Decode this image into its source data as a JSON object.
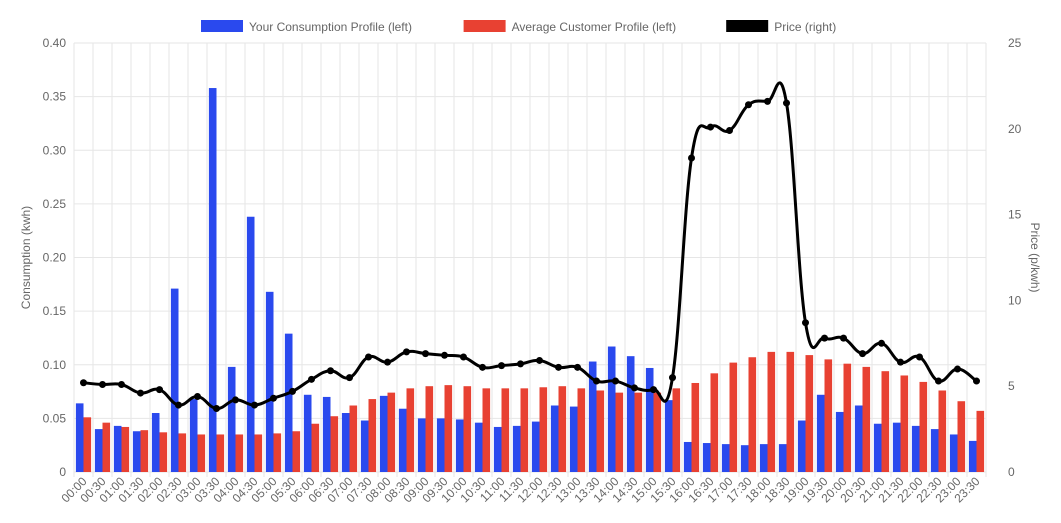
{
  "chart_data": {
    "type": "bar",
    "categories": [
      "00:00",
      "00:30",
      "01:00",
      "01:30",
      "02:00",
      "02:30",
      "03:00",
      "03:30",
      "04:00",
      "04:30",
      "05:00",
      "05:30",
      "06:00",
      "06:30",
      "07:00",
      "07:30",
      "08:00",
      "08:30",
      "09:00",
      "09:30",
      "10:00",
      "10:30",
      "11:00",
      "11:30",
      "12:00",
      "12:30",
      "13:00",
      "13:30",
      "14:00",
      "14:30",
      "15:00",
      "15:30",
      "16:00",
      "16:30",
      "17:00",
      "17:30",
      "18:00",
      "18:30",
      "19:00",
      "19:30",
      "20:00",
      "20:30",
      "21:00",
      "21:30",
      "22:00",
      "22:30",
      "23:00",
      "23:30"
    ],
    "series": [
      {
        "name": "Your Consumption Profile (left)",
        "type": "bar",
        "axis": "left",
        "color": "#2a49ee",
        "values": [
          0.064,
          0.04,
          0.043,
          0.038,
          0.055,
          0.171,
          0.068,
          0.358,
          0.098,
          0.238,
          0.168,
          0.129,
          0.072,
          0.07,
          0.055,
          0.048,
          0.071,
          0.059,
          0.05,
          0.05,
          0.049,
          0.046,
          0.042,
          0.043,
          0.047,
          0.062,
          0.061,
          0.103,
          0.117,
          0.108,
          0.097,
          0.067,
          0.028,
          0.027,
          0.026,
          0.025,
          0.026,
          0.026,
          0.048,
          0.072,
          0.056,
          0.062,
          0.045,
          0.046,
          0.043,
          0.04,
          0.035,
          0.029
        ]
      },
      {
        "name": "Average Customer Profile (left)",
        "type": "bar",
        "axis": "left",
        "color": "#e84132",
        "values": [
          0.051,
          0.046,
          0.042,
          0.039,
          0.037,
          0.036,
          0.035,
          0.035,
          0.035,
          0.035,
          0.036,
          0.038,
          0.045,
          0.052,
          0.062,
          0.068,
          0.074,
          0.078,
          0.08,
          0.081,
          0.08,
          0.078,
          0.078,
          0.078,
          0.079,
          0.08,
          0.078,
          0.076,
          0.074,
          0.074,
          0.074,
          0.078,
          0.083,
          0.092,
          0.102,
          0.107,
          0.112,
          0.112,
          0.109,
          0.105,
          0.101,
          0.098,
          0.094,
          0.09,
          0.084,
          0.076,
          0.066,
          0.057
        ]
      },
      {
        "name": "Price (right)",
        "type": "line",
        "axis": "right",
        "color": "#000000",
        "values": [
          5.2,
          5.1,
          5.1,
          4.6,
          4.8,
          3.9,
          4.4,
          3.7,
          4.2,
          3.9,
          4.3,
          4.7,
          5.4,
          5.9,
          5.5,
          6.7,
          6.4,
          7.0,
          6.9,
          6.8,
          6.7,
          6.1,
          6.2,
          6.3,
          6.5,
          6.1,
          6.1,
          5.3,
          5.3,
          4.9,
          4.8,
          5.5,
          18.3,
          20.1,
          19.9,
          21.4,
          21.6,
          21.5,
          8.7,
          7.8,
          7.8,
          6.9,
          7.5,
          6.4,
          6.7,
          5.3,
          6.0,
          5.3
        ]
      }
    ],
    "ylabel": "Consumption (kwh)",
    "ylim": [
      0,
      0.4
    ],
    "yticks": [
      "0",
      "0.05",
      "0.10",
      "0.15",
      "0.20",
      "0.25",
      "0.30",
      "0.35",
      "0.40"
    ],
    "y2label": "Price (p/kwh)",
    "y2lim": [
      0,
      25
    ],
    "y2ticks": [
      "0",
      "5",
      "10",
      "15",
      "20",
      "25"
    ],
    "grid": true,
    "legend_position": "top"
  }
}
